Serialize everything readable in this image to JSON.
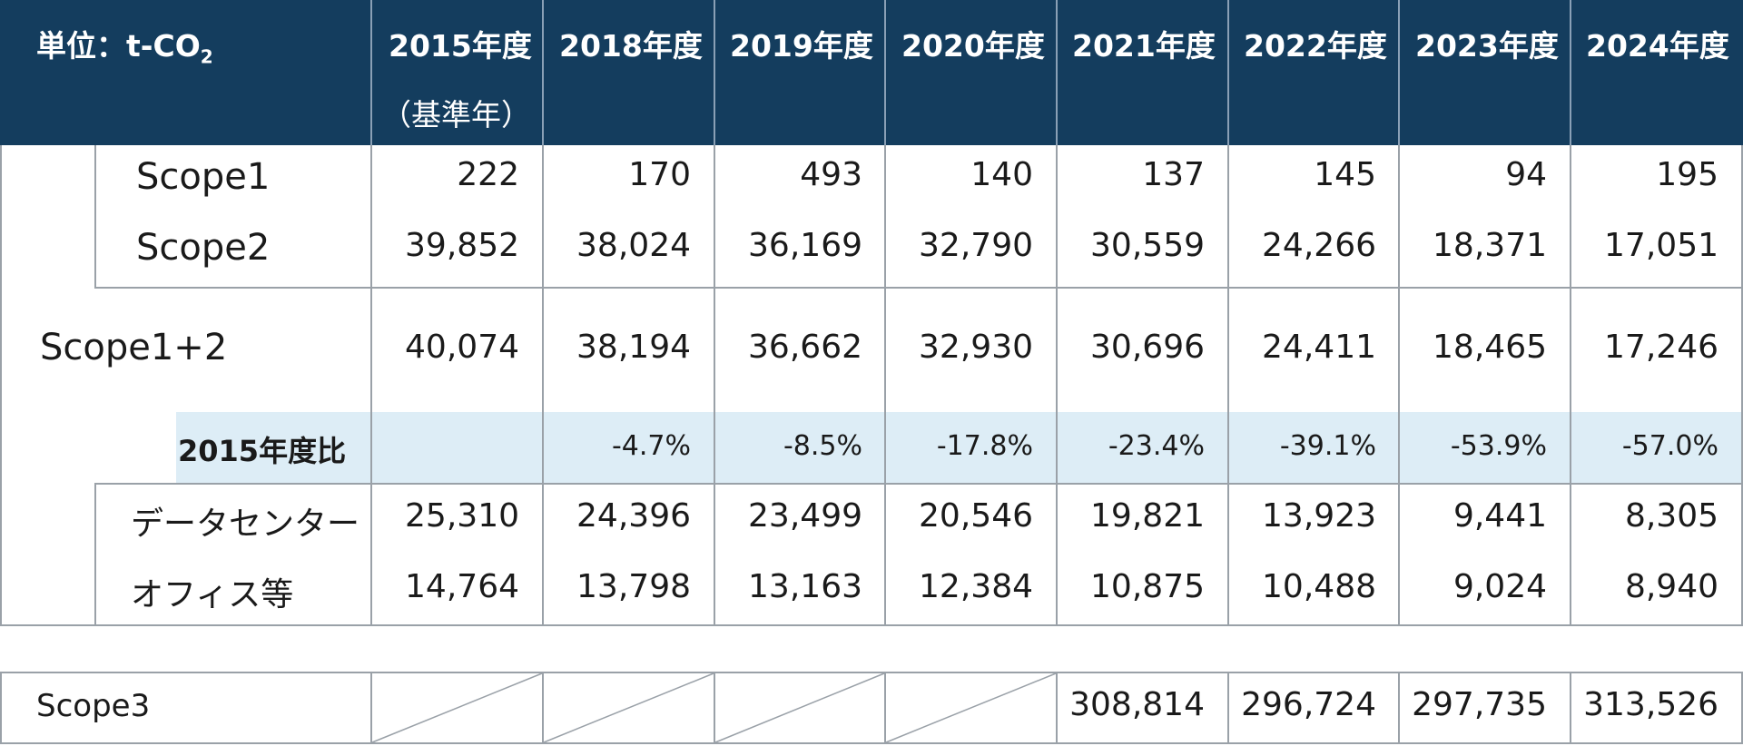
{
  "table": {
    "unit_label": "単位：t-CO",
    "unit_sub": "2",
    "years": [
      {
        "label": "2015年度",
        "note": "（基準年）"
      },
      {
        "label": "2018年度"
      },
      {
        "label": "2019年度"
      },
      {
        "label": "2020年度"
      },
      {
        "label": "2021年度"
      },
      {
        "label": "2022年度"
      },
      {
        "label": "2023年度"
      },
      {
        "label": "2024年度"
      }
    ],
    "rows": {
      "scope1": {
        "label": "Scope1",
        "values": [
          "222",
          "170",
          "493",
          "140",
          "137",
          "145",
          "94",
          "195"
        ]
      },
      "scope2": {
        "label": "Scope2",
        "values": [
          "39,852",
          "38,024",
          "36,169",
          "32,790",
          "30,559",
          "24,266",
          "18,371",
          "17,051"
        ]
      },
      "scope12": {
        "label": "Scope1+2",
        "values": [
          "40,074",
          "38,194",
          "36,662",
          "32,930",
          "30,696",
          "24,411",
          "18,465",
          "17,246"
        ]
      },
      "ratio": {
        "label": "2015年度比",
        "values": [
          "",
          "-4.7%",
          "-8.5%",
          "-17.8%",
          "-23.4%",
          "-39.1%",
          "-53.9%",
          "-57.0%"
        ]
      },
      "datacenter": {
        "label": "データセンター",
        "values": [
          "25,310",
          "24,396",
          "23,499",
          "20,546",
          "19,821",
          "13,923",
          "9,441",
          "8,305"
        ]
      },
      "office": {
        "label": "オフィス等",
        "values": [
          "14,764",
          "13,798",
          "13,163",
          "12,384",
          "10,875",
          "10,488",
          "9,024",
          "8,940"
        ]
      }
    },
    "scope3": {
      "label": "Scope3",
      "values": [
        "",
        "",
        "",
        "",
        "308,814",
        "296,724",
        "297,735",
        "313,526"
      ]
    }
  }
}
